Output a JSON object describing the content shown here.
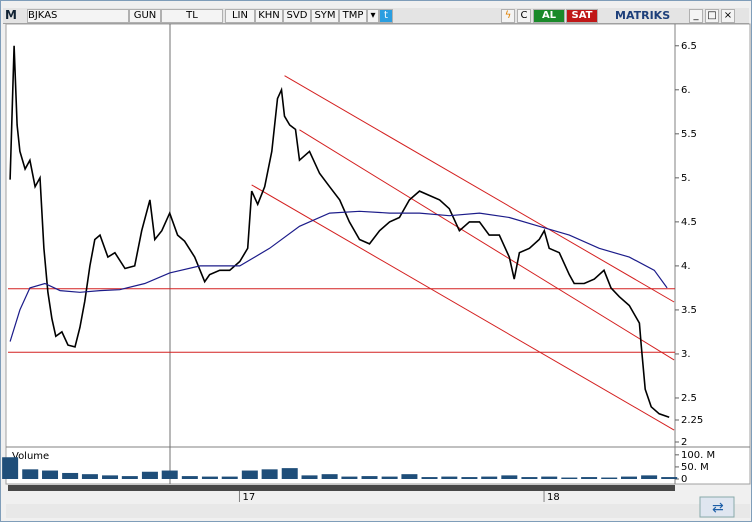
{
  "toolbar": {
    "logo": "M",
    "symbol": "BJKAS",
    "buttons": [
      "GUN",
      "TL",
      "LIN",
      "KHN",
      "SVD",
      "SYM",
      "TMP"
    ],
    "refresh": "C",
    "buy": "AL",
    "sell": "SAT",
    "brand": "MATRIKS"
  },
  "chart_data": [
    {
      "type": "line",
      "xlim": [
        16.24,
        18.43
      ],
      "ylim": [
        2,
        6.77
      ],
      "xticks": [
        {
          "value": 17,
          "label": "17"
        },
        {
          "value": 18,
          "label": "18"
        }
      ],
      "yticks": [
        {
          "value": 6.5,
          "label": "6.5"
        },
        {
          "value": 6,
          "label": "6."
        },
        {
          "value": 5.5,
          "label": "5.5"
        },
        {
          "value": 5,
          "label": "5."
        },
        {
          "value": 4.5,
          "label": "4.5"
        },
        {
          "value": 4,
          "label": "4."
        },
        {
          "value": 3.5,
          "label": "3.5"
        },
        {
          "value": 3,
          "label": "3."
        },
        {
          "value": 2.5,
          "label": "2.5"
        },
        2.25,
        2
      ],
      "series": [
        {
          "color": "#000000",
          "x": [
            16.247,
            16.26,
            16.27,
            16.279,
            16.296,
            16.312,
            16.329,
            16.345,
            16.358,
            16.371,
            16.384,
            16.397,
            16.417,
            16.437,
            16.46,
            16.476,
            16.492,
            16.509,
            16.525,
            16.542,
            16.568,
            16.591,
            16.624,
            16.656,
            16.679,
            16.706,
            16.722,
            16.745,
            16.771,
            16.797,
            16.82,
            16.853,
            16.886,
            16.902,
            16.935,
            16.968,
            17.001,
            17.027,
            17.04,
            17.06,
            17.083,
            17.106,
            17.125,
            17.138,
            17.148,
            17.165,
            17.184,
            17.197,
            17.23,
            17.263,
            17.296,
            17.329,
            17.361,
            17.394,
            17.427,
            17.46,
            17.493,
            17.525,
            17.558,
            17.591,
            17.624,
            17.657,
            17.689,
            17.722,
            17.755,
            17.788,
            17.82,
            17.853,
            17.886,
            17.902,
            17.919,
            17.952,
            17.984,
            18.001,
            18.017,
            18.05,
            18.083,
            18.099,
            18.132,
            18.165,
            18.197,
            18.22,
            18.247,
            18.28,
            18.313,
            18.319,
            18.332,
            18.352,
            18.378,
            18.411
          ],
          "values": [
            4.98,
            6.5,
            5.6,
            5.3,
            5.1,
            5.2,
            4.9,
            5.0,
            4.2,
            3.7,
            3.4,
            3.2,
            3.25,
            3.1,
            3.08,
            3.3,
            3.6,
            4.0,
            4.3,
            4.35,
            4.1,
            4.15,
            3.97,
            4.0,
            4.4,
            4.75,
            4.3,
            4.4,
            4.6,
            4.35,
            4.28,
            4.1,
            3.82,
            3.9,
            3.95,
            3.95,
            4.05,
            4.2,
            4.85,
            4.7,
            4.9,
            5.3,
            5.9,
            6.0,
            5.7,
            5.6,
            5.55,
            5.2,
            5.3,
            5.05,
            4.9,
            4.75,
            4.5,
            4.3,
            4.25,
            4.4,
            4.5,
            4.55,
            4.75,
            4.85,
            4.8,
            4.75,
            4.65,
            4.4,
            4.5,
            4.5,
            4.35,
            4.35,
            4.1,
            3.85,
            4.15,
            4.2,
            4.3,
            4.4,
            4.2,
            4.15,
            3.9,
            3.8,
            3.8,
            3.85,
            3.95,
            3.75,
            3.65,
            3.55,
            3.35,
            3.1,
            2.6,
            2.4,
            2.32,
            2.28
          ]
        },
        {
          "color": "#1c1c8a",
          "x": [
            16.247,
            16.279,
            16.312,
            16.361,
            16.411,
            16.476,
            16.542,
            16.607,
            16.689,
            16.771,
            16.87,
            17.001,
            17.099,
            17.197,
            17.296,
            17.394,
            17.493,
            17.591,
            17.689,
            17.788,
            17.886,
            17.984,
            18.083,
            18.181,
            18.28,
            18.362,
            18.404
          ],
          "values": [
            3.14,
            3.5,
            3.75,
            3.8,
            3.72,
            3.7,
            3.72,
            3.73,
            3.8,
            3.92,
            4.0,
            4.0,
            4.2,
            4.45,
            4.6,
            4.62,
            4.6,
            4.6,
            4.57,
            4.6,
            4.55,
            4.45,
            4.35,
            4.2,
            4.1,
            3.95,
            3.75
          ]
        }
      ],
      "trend_lines": [
        {
          "color": "#d42020",
          "x": [
            16.24,
            18.43
          ],
          "y": [
            3.74,
            3.74
          ]
        },
        {
          "color": "#d42020",
          "x": [
            16.24,
            18.43
          ],
          "y": [
            3.02,
            3.02
          ]
        },
        {
          "color": "#d42020",
          "x": [
            17.148,
            18.427
          ],
          "y": [
            6.16,
            3.59
          ]
        },
        {
          "color": "#d42020",
          "x": [
            17.197,
            18.427
          ],
          "y": [
            5.545,
            2.932
          ]
        },
        {
          "color": "#d42020",
          "x": [
            17.04,
            18.427
          ],
          "y": [
            4.92,
            2.136
          ]
        }
      ]
    },
    {
      "type": "bar",
      "title": "Volume",
      "color": "#1f4e79",
      "xlim": [
        16.24,
        18.43
      ],
      "ylim": [
        0,
        120
      ],
      "yticks": [
        {
          "value": 100,
          "label": "100. M"
        },
        {
          "value": 50,
          "label": "50. M"
        },
        0
      ],
      "x": [
        16.247,
        16.313,
        16.378,
        16.444,
        16.509,
        16.575,
        16.64,
        16.706,
        16.771,
        16.837,
        16.903,
        16.968,
        17.034,
        17.099,
        17.165,
        17.23,
        17.296,
        17.361,
        17.427,
        17.493,
        17.558,
        17.624,
        17.689,
        17.755,
        17.82,
        17.886,
        17.952,
        18.017,
        18.083,
        18.148,
        18.214,
        18.279,
        18.345,
        18.411
      ],
      "values": [
        90,
        40,
        35,
        25,
        20,
        15,
        12,
        30,
        35,
        12,
        10,
        10,
        35,
        40,
        45,
        15,
        20,
        10,
        12,
        10,
        20,
        8,
        10,
        8,
        10,
        15,
        8,
        10,
        6,
        8,
        6,
        10,
        15,
        8
      ]
    }
  ]
}
